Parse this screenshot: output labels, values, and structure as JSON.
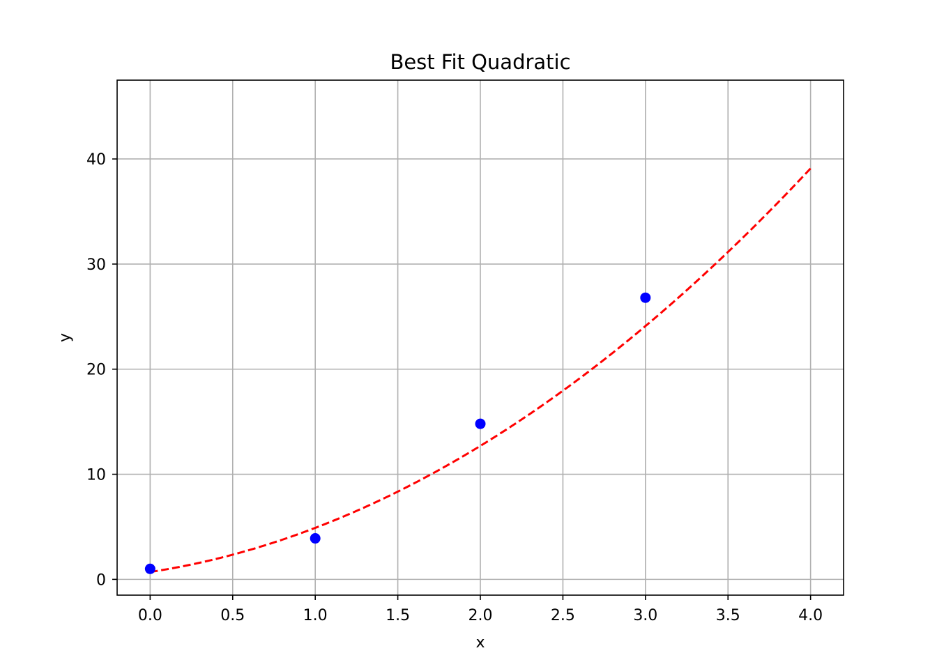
{
  "chart_data": {
    "type": "scatter",
    "title": "Best Fit Quadratic",
    "xlabel": "x",
    "ylabel": "y",
    "xlim": [
      -0.2,
      4.2
    ],
    "ylim": [
      -1.5,
      47.5
    ],
    "x_ticks": [
      0.0,
      0.5,
      1.0,
      1.5,
      2.0,
      2.5,
      3.0,
      3.5,
      4.0
    ],
    "x_tick_labels": [
      "0.0",
      "0.5",
      "1.0",
      "1.5",
      "2.0",
      "2.5",
      "3.0",
      "3.5",
      "4.0"
    ],
    "y_ticks": [
      0,
      10,
      20,
      30,
      40
    ],
    "y_tick_labels": [
      "0",
      "10",
      "20",
      "30",
      "40"
    ],
    "grid": true,
    "series": [
      {
        "kind": "scatter",
        "color": "#0000ff",
        "marker": "circle",
        "x": [
          0,
          1,
          2,
          3
        ],
        "y": [
          1.0,
          3.9,
          14.8,
          26.8
        ]
      },
      {
        "kind": "line",
        "style": "dashed",
        "color": "#ff0000",
        "fit": {
          "form": "a*x^2 + b*x + c",
          "a": 1.8,
          "b": 2.4,
          "c": 0.7
        },
        "x_range": [
          0,
          4
        ]
      }
    ]
  }
}
